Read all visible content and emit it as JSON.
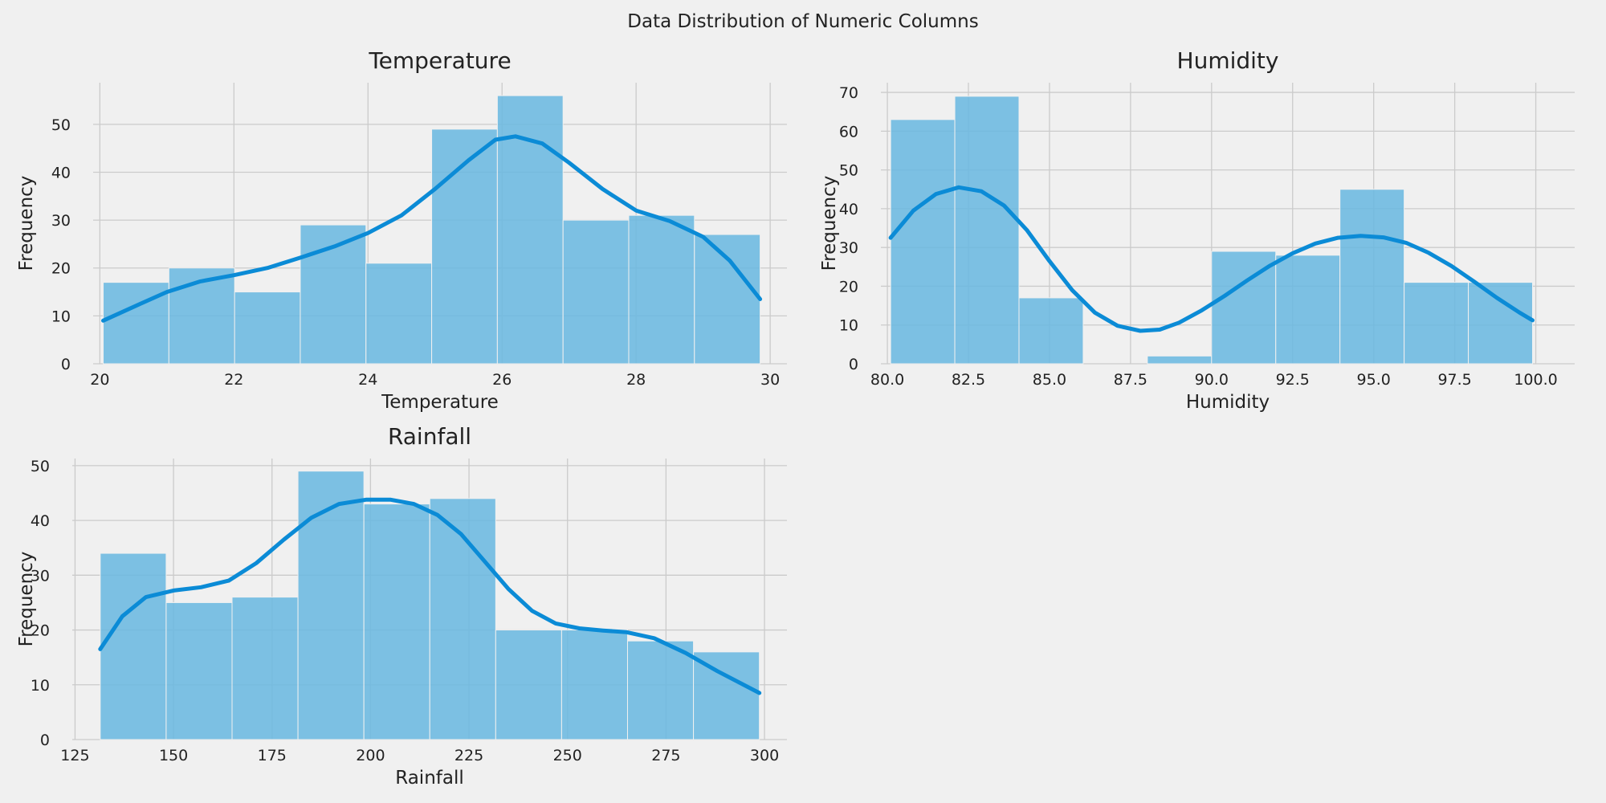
{
  "figure_title": "Data Distribution of Numeric Columns",
  "colors": {
    "bar": "#6bb8e0",
    "kde": "#0b8bd6",
    "grid": "#cbcbcb",
    "background": "#f0f0f0"
  },
  "chart_data": [
    {
      "type": "bar",
      "title": "Temperature",
      "xlabel": "Temperature",
      "ylabel": "Frequency",
      "xlim": [
        19.9,
        30.25
      ],
      "ylim": [
        0,
        58.7
      ],
      "xticks": [
        20,
        22,
        24,
        26,
        28,
        30
      ],
      "xtick_labels": [
        "20",
        "22",
        "24",
        "26",
        "28",
        "30"
      ],
      "yticks": [
        0,
        10,
        20,
        30,
        40,
        50
      ],
      "bin_edges": [
        20.05,
        21.03,
        22.01,
        22.99,
        23.97,
        24.95,
        25.93,
        26.91,
        27.89,
        28.87,
        29.85
      ],
      "values": [
        17,
        20,
        15,
        29,
        21,
        49,
        56,
        30,
        31,
        27
      ],
      "kde": {
        "x": [
          20.05,
          20.6,
          21.0,
          21.5,
          22.0,
          22.5,
          23.0,
          23.5,
          24.0,
          24.5,
          25.0,
          25.5,
          25.9,
          26.2,
          26.6,
          27.0,
          27.5,
          28.0,
          28.5,
          29.0,
          29.4,
          29.85
        ],
        "y": [
          9.0,
          12.5,
          15.0,
          17.2,
          18.5,
          20.0,
          22.2,
          24.5,
          27.3,
          31.0,
          36.5,
          42.5,
          46.8,
          47.5,
          46.0,
          42.0,
          36.5,
          32.0,
          29.8,
          26.5,
          21.5,
          13.5
        ]
      },
      "grid": true
    },
    {
      "type": "bar",
      "title": "Humidity",
      "xlabel": "Humidity",
      "ylabel": "Frequency",
      "xlim": [
        79.8,
        101.2
      ],
      "ylim": [
        0,
        72.5
      ],
      "xticks": [
        80,
        82.5,
        85,
        87.5,
        90,
        92.5,
        95,
        97.5,
        100
      ],
      "xtick_labels": [
        "80.0",
        "82.5",
        "85.0",
        "87.5",
        "90.0",
        "92.5",
        "95.0",
        "97.5",
        "100.0"
      ],
      "yticks": [
        0,
        10,
        20,
        30,
        40,
        50,
        60,
        70
      ],
      "bin_edges": [
        80.1,
        82.08,
        84.06,
        86.04,
        88.02,
        90.0,
        91.98,
        93.96,
        95.94,
        97.92,
        99.9
      ],
      "values": [
        63,
        69,
        17,
        0,
        2,
        29,
        28,
        45,
        21,
        21
      ],
      "kde": {
        "x": [
          80.1,
          80.8,
          81.5,
          82.2,
          82.9,
          83.6,
          84.3,
          85.0,
          85.7,
          86.4,
          87.1,
          87.8,
          88.4,
          89.0,
          89.7,
          90.4,
          91.1,
          91.8,
          92.5,
          93.2,
          93.9,
          94.6,
          95.3,
          96.0,
          96.7,
          97.4,
          98.1,
          98.8,
          99.5,
          99.9
        ],
        "y": [
          32.5,
          39.5,
          43.8,
          45.5,
          44.5,
          40.8,
          34.5,
          26.5,
          19.0,
          13.2,
          9.8,
          8.5,
          8.8,
          10.6,
          13.8,
          17.5,
          21.5,
          25.3,
          28.5,
          31.0,
          32.5,
          33.0,
          32.6,
          31.2,
          28.6,
          25.2,
          21.2,
          17.0,
          13.2,
          11.2
        ]
      },
      "grid": true
    },
    {
      "type": "bar",
      "title": "Rainfall",
      "xlabel": "Rainfall",
      "ylabel": "Frequency",
      "xlim": [
        124.3,
        305.7
      ],
      "ylim": [
        0,
        51.3
      ],
      "xticks": [
        125,
        150,
        175,
        200,
        225,
        250,
        275,
        300
      ],
      "xtick_labels": [
        "125",
        "150",
        "175",
        "200",
        "225",
        "250",
        "275",
        "300"
      ],
      "yticks": [
        0,
        10,
        20,
        30,
        40,
        50
      ],
      "bin_edges": [
        131.4,
        148.13,
        164.86,
        181.59,
        198.32,
        215.05,
        231.78,
        248.51,
        265.24,
        281.97,
        298.7
      ],
      "values": [
        34,
        25,
        26,
        49,
        43,
        44,
        20,
        20,
        18,
        16
      ],
      "kde": {
        "x": [
          131.4,
          137,
          143,
          150,
          157,
          164,
          171,
          178,
          185,
          192,
          199,
          205,
          211,
          217,
          223,
          229,
          235,
          241,
          247,
          253,
          259,
          265,
          272,
          280,
          288,
          298.7
        ],
        "y": [
          16.5,
          22.5,
          26.0,
          27.2,
          27.8,
          29.0,
          32.2,
          36.5,
          40.5,
          43.0,
          43.8,
          43.8,
          43.0,
          41.0,
          37.5,
          32.5,
          27.5,
          23.5,
          21.2,
          20.3,
          19.9,
          19.6,
          18.5,
          15.8,
          12.5,
          8.5
        ]
      },
      "grid": true
    }
  ]
}
